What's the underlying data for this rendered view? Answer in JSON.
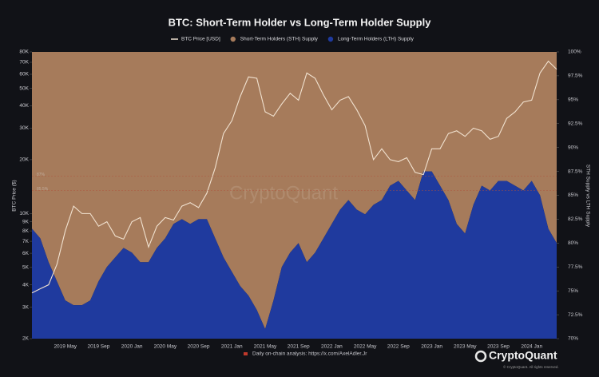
{
  "chart_data": {
    "type": "area-line",
    "title": "BTC: Short-Term Holder vs Long-Term Holder Supply",
    "ylabel": "BTC Price ($)",
    "y2label": "STH Supply vs LTH Supply",
    "footnote": "Daily on-chain analysis: https://x.com/AxelAdler.Jr",
    "watermark": "CryptoQuant",
    "brand": "CryptoQuant",
    "copyright": "© CryptoQuant. All rights reserved.",
    "legend_position": "top",
    "log_scale_y": true,
    "categories": [
      null,
      null,
      null,
      null,
      "2019 May",
      null,
      null,
      null,
      "2019 Sep",
      null,
      null,
      null,
      "2020 Jan",
      null,
      null,
      null,
      "2020 May",
      null,
      null,
      null,
      "2020 Sep",
      null,
      null,
      null,
      "2021 Jan",
      null,
      null,
      null,
      "2021 May",
      null,
      null,
      null,
      "2021 Sep",
      null,
      null,
      null,
      "2022 Jan",
      null,
      null,
      null,
      "2022 May",
      null,
      null,
      null,
      "2022 Sep",
      null,
      null,
      null,
      "2023 Jan",
      null,
      null,
      null,
      "2023 May",
      null,
      null,
      null,
      "2023 Sep",
      null,
      null,
      null,
      "2024 Jan",
      null,
      null,
      null
    ],
    "series": [
      {
        "name": "BTC Price [USD]",
        "color": "#f1e2d0",
        "axis": "y",
        "kind": "line",
        "values": [
          3600,
          3800,
          4000,
          5200,
          8000,
          11000,
          10000,
          10000,
          8500,
          9000,
          7500,
          7200,
          9000,
          9500,
          6500,
          8500,
          9500,
          9200,
          11000,
          11500,
          10800,
          13000,
          18000,
          28000,
          33000,
          45000,
          58000,
          57000,
          37000,
          35000,
          41000,
          47000,
          43000,
          61000,
          57000,
          46000,
          38000,
          43000,
          45000,
          38000,
          31000,
          20000,
          23000,
          20000,
          19500,
          20500,
          17000,
          16500,
          23000,
          23000,
          28000,
          29000,
          27000,
          30000,
          29000,
          26000,
          27000,
          34000,
          37000,
          42000,
          43000,
          61000,
          71000,
          64000
        ]
      },
      {
        "name": "Short-Term Holders (STH) Supply",
        "color": "#a67b5b",
        "axis": "y2",
        "kind": "area-top",
        "values": [
          18.5,
          19.5,
          22,
          24,
          26,
          26.5,
          26.5,
          26,
          24,
          22.5,
          21.5,
          20.5,
          21,
          22,
          22,
          20.5,
          19.5,
          18,
          17.5,
          18,
          17.5,
          17.5,
          19.5,
          21.5,
          23,
          24.5,
          25.5,
          27,
          29,
          26,
          22.5,
          21,
          20,
          22,
          21,
          19.5,
          18,
          16.5,
          15.5,
          16.5,
          17,
          16,
          15.5,
          14,
          13.5,
          14.5,
          15.5,
          12.5,
          12.5,
          14,
          15.5,
          18,
          19,
          16,
          14,
          14.5,
          13.5,
          13.5,
          14,
          14.5,
          13.5,
          15,
          18.5,
          20
        ]
      },
      {
        "name": "Long-Term Holders (LTH) Supply",
        "color": "#1f3a9e",
        "axis": "y2",
        "kind": "area-bottom",
        "values": [
          81.5,
          80.5,
          78,
          76,
          74,
          73.5,
          73.5,
          74,
          76,
          77.5,
          78.5,
          79.5,
          79,
          78,
          78,
          79.5,
          80.5,
          82,
          82.5,
          82,
          82.5,
          82.5,
          80.5,
          78.5,
          77,
          75.5,
          74.5,
          73,
          71,
          74,
          77.5,
          79,
          80,
          78,
          79,
          80.5,
          82,
          83.5,
          84.5,
          83.5,
          83,
          84,
          84.5,
          86,
          86.5,
          85.5,
          84.5,
          87.5,
          87.5,
          86,
          84.5,
          82,
          81,
          84,
          86,
          85.5,
          86.5,
          86.5,
          86,
          85.5,
          86.5,
          85,
          81.5,
          80
        ]
      }
    ],
    "annotations": [
      {
        "value": 87,
        "label": "87%"
      },
      {
        "value": 85.5,
        "label": "85.5%"
      }
    ],
    "ylim": [
      2000,
      80000
    ],
    "yticks": [
      {
        "value": 2000,
        "label": "2K"
      },
      {
        "value": 3000,
        "label": "3K"
      },
      {
        "value": 4000,
        "label": "4K"
      },
      {
        "value": 5000,
        "label": "5K"
      },
      {
        "value": 6000,
        "label": "6K"
      },
      {
        "value": 7000,
        "label": "7K"
      },
      {
        "value": 8000,
        "label": "8K"
      },
      {
        "value": 9000,
        "label": "9K"
      },
      {
        "value": 10000,
        "label": "10K"
      },
      {
        "value": 20000,
        "label": "20K"
      },
      {
        "value": 30000,
        "label": "30K"
      },
      {
        "value": 40000,
        "label": "40K"
      },
      {
        "value": 50000,
        "label": "50K"
      },
      {
        "value": 60000,
        "label": "60K"
      },
      {
        "value": 70000,
        "label": "70K"
      },
      {
        "value": 80000,
        "label": "80K"
      }
    ],
    "y2lim": [
      70,
      100
    ],
    "y2ticks": [
      {
        "value": 70,
        "label": "70%"
      },
      {
        "value": 72.5,
        "label": "72.5%"
      },
      {
        "value": 75,
        "label": "75%"
      },
      {
        "value": 77.5,
        "label": "77.5%"
      },
      {
        "value": 80,
        "label": "80%"
      },
      {
        "value": 82.5,
        "label": "82.5%"
      },
      {
        "value": 85,
        "label": "85%"
      },
      {
        "value": 87.5,
        "label": "87.5%"
      },
      {
        "value": 90,
        "label": "90%"
      },
      {
        "value": 92.5,
        "label": "92.5%"
      },
      {
        "value": 95,
        "label": "95%"
      },
      {
        "value": 97.5,
        "label": "97.5%"
      },
      {
        "value": 100,
        "label": "100%"
      }
    ]
  }
}
